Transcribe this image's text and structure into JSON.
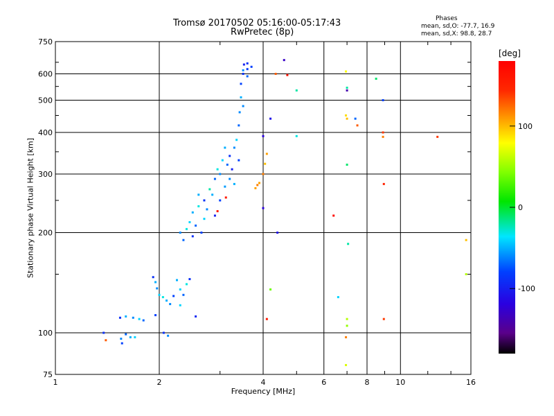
{
  "chart_data": {
    "type": "scatter",
    "title": "Tromsø 20170502 05:16:00-05:17:43",
    "subtitle": "RwPretec (8p)",
    "xlabel": "Frequency [MHz]",
    "ylabel": "Stationary phase Virtual Height [km]",
    "xscale": "log",
    "yscale": "log",
    "xlim": [
      1,
      16
    ],
    "ylim": [
      75,
      750
    ],
    "xticks": [
      1,
      2,
      4,
      6,
      8,
      10,
      16
    ],
    "yticks": [
      75,
      100,
      200,
      300,
      400,
      500,
      600,
      750
    ],
    "grid": true,
    "phase_info": {
      "heading": "Phases",
      "line_o": "mean, sd,O: -77.7, 16.9",
      "line_x": "mean, sd,X:  98.8, 28.7"
    },
    "colorbar": {
      "label": "[deg]",
      "range": [
        -180,
        180
      ],
      "ticks": [
        100,
        0,
        -100
      ]
    },
    "points": [
      [
        1.38,
        100,
        -90
      ],
      [
        1.4,
        95,
        130
      ],
      [
        1.55,
        96,
        -60
      ],
      [
        1.56,
        93,
        -80
      ],
      [
        1.6,
        99,
        -70
      ],
      [
        1.65,
        97,
        -50
      ],
      [
        1.7,
        97,
        -40
      ],
      [
        1.54,
        111,
        -90
      ],
      [
        1.6,
        112,
        -50
      ],
      [
        1.68,
        111,
        -60
      ],
      [
        1.75,
        110,
        -40
      ],
      [
        1.8,
        109,
        -70
      ],
      [
        1.92,
        147,
        -90
      ],
      [
        1.95,
        142,
        -50
      ],
      [
        1.97,
        136,
        -60
      ],
      [
        1.95,
        113,
        -80
      ],
      [
        2.0,
        130,
        -40
      ],
      [
        2.05,
        128,
        -30
      ],
      [
        2.1,
        125,
        -50
      ],
      [
        2.15,
        122,
        -60
      ],
      [
        2.2,
        129,
        -80
      ],
      [
        2.25,
        144,
        -50
      ],
      [
        2.3,
        135,
        -40
      ],
      [
        2.35,
        130,
        -70
      ],
      [
        2.4,
        140,
        -30
      ],
      [
        2.45,
        145,
        -90
      ],
      [
        2.06,
        100,
        -90
      ],
      [
        2.12,
        98,
        -60
      ],
      [
        2.3,
        121,
        -40
      ],
      [
        2.55,
        112,
        -95
      ],
      [
        2.3,
        200,
        -60
      ],
      [
        2.35,
        190,
        -70
      ],
      [
        2.4,
        205,
        -30
      ],
      [
        2.45,
        215,
        -40
      ],
      [
        2.5,
        230,
        -50
      ],
      [
        2.5,
        195,
        -90
      ],
      [
        2.55,
        210,
        -70
      ],
      [
        2.6,
        240,
        -30
      ],
      [
        2.6,
        260,
        -50
      ],
      [
        2.65,
        200,
        -80
      ],
      [
        2.7,
        220,
        -40
      ],
      [
        2.7,
        250,
        -90
      ],
      [
        2.75,
        235,
        -60
      ],
      [
        2.8,
        270,
        -20
      ],
      [
        2.85,
        260,
        -50
      ],
      [
        2.9,
        290,
        -70
      ],
      [
        2.9,
        225,
        -100
      ],
      [
        2.95,
        310,
        -30
      ],
      [
        3.0,
        300,
        -60
      ],
      [
        3.0,
        250,
        -80
      ],
      [
        3.05,
        330,
        -40
      ],
      [
        3.1,
        275,
        -55
      ],
      [
        3.1,
        360,
        -50
      ],
      [
        3.15,
        320,
        -70
      ],
      [
        3.2,
        290,
        -60
      ],
      [
        3.2,
        340,
        -90
      ],
      [
        3.25,
        310,
        -100
      ],
      [
        3.3,
        360,
        -60
      ],
      [
        3.3,
        280,
        -50
      ],
      [
        3.35,
        380,
        -40
      ],
      [
        3.4,
        330,
        -80
      ],
      [
        3.4,
        420,
        -70
      ],
      [
        3.42,
        460,
        -60
      ],
      [
        3.45,
        510,
        -50
      ],
      [
        3.45,
        560,
        -80
      ],
      [
        3.5,
        600,
        -90
      ],
      [
        3.52,
        640,
        -100
      ],
      [
        3.6,
        645,
        -90
      ],
      [
        3.7,
        630,
        -80
      ],
      [
        3.6,
        590,
        -70
      ],
      [
        3.5,
        480,
        -60
      ],
      [
        2.95,
        232,
        160
      ],
      [
        3.12,
        255,
        160
      ],
      [
        3.5,
        615,
        -60
      ],
      [
        3.6,
        620,
        -85
      ],
      [
        3.8,
        272,
        110
      ],
      [
        3.85,
        278,
        120
      ],
      [
        3.9,
        282,
        110
      ],
      [
        4.0,
        300,
        120
      ],
      [
        4.05,
        322,
        100
      ],
      [
        4.1,
        345,
        110
      ],
      [
        4.0,
        390,
        -120
      ],
      [
        4.0,
        237,
        -120
      ],
      [
        4.1,
        110,
        160
      ],
      [
        4.2,
        135,
        40
      ],
      [
        4.2,
        440,
        -110
      ],
      [
        4.35,
        600,
        130
      ],
      [
        4.4,
        200,
        -110
      ],
      [
        4.6,
        660,
        -130
      ],
      [
        4.7,
        595,
        160
      ],
      [
        5.0,
        535,
        -20
      ],
      [
        5.0,
        390,
        -30
      ],
      [
        6.4,
        225,
        170
      ],
      [
        6.6,
        128,
        -40
      ],
      [
        6.95,
        610,
        80
      ],
      [
        7.0,
        545,
        -20
      ],
      [
        7.0,
        535,
        -140
      ],
      [
        6.95,
        450,
        90
      ],
      [
        7.0,
        440,
        100
      ],
      [
        7.0,
        320,
        -10
      ],
      [
        7.05,
        185,
        -20
      ],
      [
        7.0,
        110,
        60
      ],
      [
        7.0,
        105,
        50
      ],
      [
        6.95,
        97,
        120
      ],
      [
        6.95,
        80,
        70
      ],
      [
        7.4,
        440,
        -70
      ],
      [
        7.5,
        420,
        130
      ],
      [
        8.5,
        580,
        -10
      ],
      [
        8.9,
        500,
        -80
      ],
      [
        8.9,
        400,
        140
      ],
      [
        8.9,
        388,
        120
      ],
      [
        8.95,
        280,
        150
      ],
      [
        8.95,
        110,
        140
      ],
      [
        12.8,
        388,
        140
      ],
      [
        15.5,
        150,
        60
      ],
      [
        15.5,
        190,
        100
      ]
    ]
  }
}
